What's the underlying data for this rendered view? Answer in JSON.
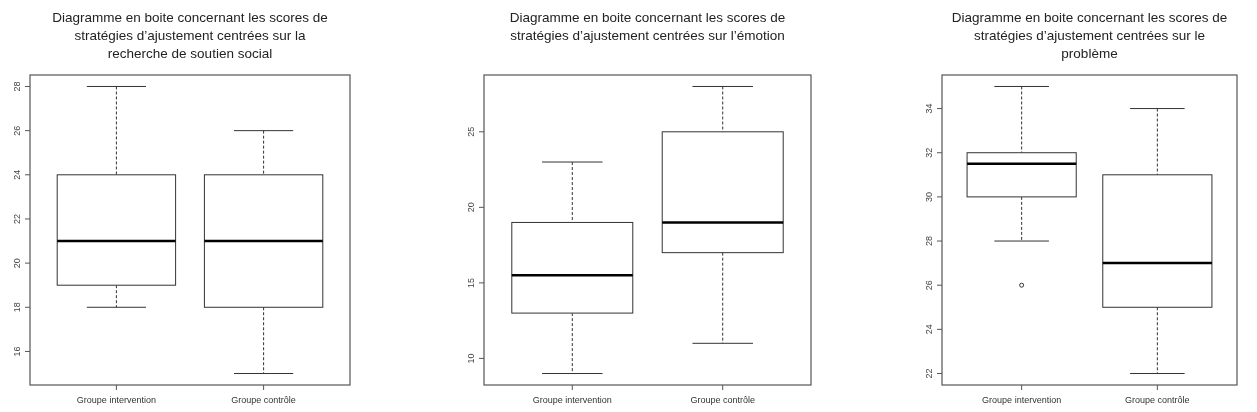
{
  "chart_data": [
    {
      "type": "box",
      "title": "Diagramme en boite concernant les scores de stratégies d’ajustement centrées sur la recherche de soutien social",
      "categories": [
        "Groupe intervention",
        "Groupe contrôle"
      ],
      "ylim": [
        14.48,
        28.52
      ],
      "yticks": [
        16,
        18,
        20,
        22,
        24,
        26,
        28
      ],
      "boxes": [
        {
          "low": 18,
          "q1": 19,
          "median": 21,
          "q3": 24,
          "high": 28
        },
        {
          "low": 15,
          "q1": 18,
          "median": 21,
          "q3": 24,
          "high": 26
        }
      ]
    },
    {
      "type": "box",
      "title": "Diagramme en boite concernant les scores de stratégies d’ajustement centrées sur l’émotion",
      "categories": [
        "Groupe intervention",
        "Groupe contrôle"
      ],
      "ylim": [
        8.24,
        28.76
      ],
      "yticks": [
        10,
        15,
        20,
        25
      ],
      "boxes": [
        {
          "low": 9,
          "q1": 13,
          "median": 15.5,
          "q3": 19,
          "high": 23
        },
        {
          "low": 11,
          "q1": 17,
          "median": 19,
          "q3": 25,
          "high": 28
        }
      ]
    },
    {
      "type": "box",
      "title": "Diagramme en boite concernant les scores de stratégies d’ajustement centrées sur le problème",
      "categories": [
        "Groupe intervention",
        "Groupe contrôle"
      ],
      "ylim": [
        21.48,
        35.52
      ],
      "yticks": [
        22,
        24,
        26,
        28,
        30,
        32,
        34
      ],
      "boxes": [
        {
          "low": 28,
          "q1": 30,
          "median": 31.5,
          "q3": 32,
          "high": 35,
          "outliers": [
            26
          ]
        },
        {
          "low": 22,
          "q1": 25,
          "median": 27,
          "q3": 31,
          "high": 34
        }
      ]
    }
  ]
}
